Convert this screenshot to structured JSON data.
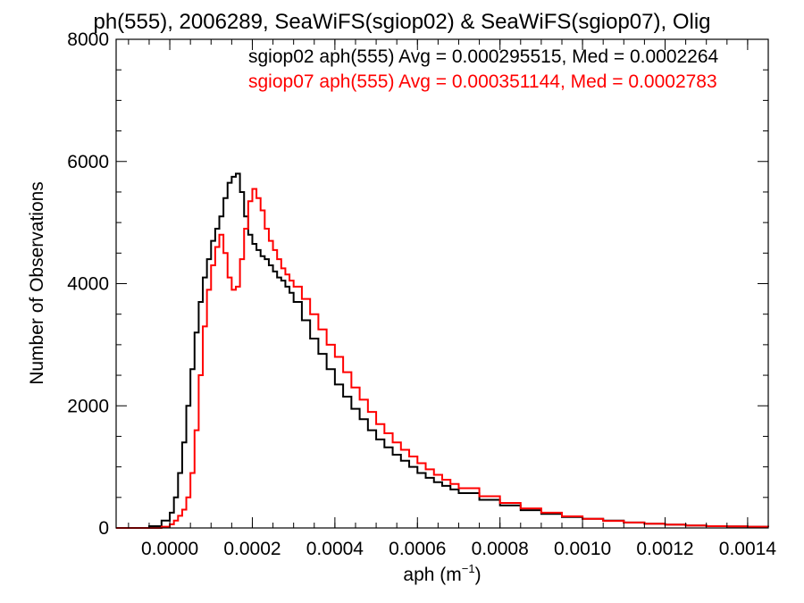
{
  "chart_data": {
    "type": "line",
    "title": "ph(555), 2006289, SeaWiFS(sgiop02) & SeaWiFS(sgiop07), Olig",
    "xlabel": "aph (m",
    "xlabel_sup": "−1",
    "xlabel_close": ")",
    "ylabel": "Number of Observations",
    "xlim": [
      -0.00013,
      0.00145
    ],
    "ylim": [
      0,
      8000
    ],
    "x_ticks": [
      0.0,
      0.0002,
      0.0004,
      0.0006,
      0.0008,
      0.001,
      0.0012,
      0.0014
    ],
    "x_tick_labels": [
      "0.0000",
      "0.0002",
      "0.0004",
      "0.0006",
      "0.0008",
      "0.0010",
      "0.0012",
      "0.0014"
    ],
    "y_ticks": [
      0,
      2000,
      4000,
      6000,
      8000
    ],
    "y_tick_labels": [
      "0",
      "2000",
      "4000",
      "6000",
      "8000"
    ],
    "grid": false,
    "step": true,
    "annotations": [
      {
        "text": "sgiop02 aph(555) Avg = 0.000295515, Med = 0.0002264",
        "color": "#000000"
      },
      {
        "text": "sgiop07 aph(555) Avg = 0.000351144, Med = 0.0002783",
        "color": "#ff0000"
      }
    ],
    "series": [
      {
        "color": "#000000",
        "x": [
          -0.00013,
          -0.0001,
          -5e-05,
          -2e-05,
          0.0,
          1e-05,
          2e-05,
          3e-05,
          4e-05,
          5e-05,
          6e-05,
          7e-05,
          8e-05,
          9e-05,
          0.0001,
          0.00011,
          0.00012,
          0.00013,
          0.00014,
          0.00015,
          0.00016,
          0.00017,
          0.00018,
          0.00019,
          0.0002,
          0.00021,
          0.00022,
          0.00023,
          0.00024,
          0.00025,
          0.00026,
          0.00027,
          0.00028,
          0.00029,
          0.0003,
          0.00032,
          0.00034,
          0.00036,
          0.00038,
          0.0004,
          0.00042,
          0.00044,
          0.00046,
          0.00048,
          0.0005,
          0.00052,
          0.00054,
          0.00056,
          0.00058,
          0.0006,
          0.00062,
          0.00064,
          0.00066,
          0.00068,
          0.0007,
          0.00075,
          0.0008,
          0.00085,
          0.0009,
          0.00095,
          0.001,
          0.00105,
          0.0011,
          0.00115,
          0.0012,
          0.00125,
          0.0013,
          0.00135,
          0.0014,
          0.00145
        ],
        "y": [
          0,
          0,
          30,
          120,
          250,
          500,
          900,
          1400,
          2000,
          2600,
          3200,
          3700,
          4100,
          4400,
          4700,
          4900,
          5100,
          5400,
          5650,
          5750,
          5800,
          5500,
          5100,
          4800,
          4650,
          4550,
          4450,
          4400,
          4300,
          4200,
          4100,
          4050,
          3950,
          3850,
          3700,
          3400,
          3100,
          2850,
          2600,
          2350,
          2150,
          1950,
          1780,
          1600,
          1450,
          1320,
          1200,
          1100,
          1000,
          900,
          820,
          750,
          690,
          630,
          570,
          460,
          370,
          290,
          230,
          180,
          150,
          120,
          90,
          70,
          55,
          40,
          30,
          25,
          20,
          15
        ]
      },
      {
        "color": "#ff0000",
        "x": [
          -0.00013,
          -0.0001,
          -5e-05,
          -2e-05,
          0.0,
          1e-05,
          2e-05,
          3e-05,
          4e-05,
          5e-05,
          6e-05,
          7e-05,
          8e-05,
          9e-05,
          0.0001,
          0.00011,
          0.00012,
          0.00013,
          0.00014,
          0.00015,
          0.00016,
          0.00017,
          0.00018,
          0.00019,
          0.0002,
          0.00021,
          0.00022,
          0.00023,
          0.00024,
          0.00025,
          0.00026,
          0.00027,
          0.00028,
          0.00029,
          0.0003,
          0.00032,
          0.00034,
          0.00036,
          0.00038,
          0.0004,
          0.00042,
          0.00044,
          0.00046,
          0.00048,
          0.0005,
          0.00052,
          0.00054,
          0.00056,
          0.00058,
          0.0006,
          0.00062,
          0.00064,
          0.00066,
          0.00068,
          0.0007,
          0.00075,
          0.0008,
          0.00085,
          0.0009,
          0.00095,
          0.001,
          0.00105,
          0.0011,
          0.00115,
          0.0012,
          0.00125,
          0.0013,
          0.00135,
          0.0014,
          0.00145
        ],
        "y": [
          0,
          0,
          0,
          20,
          60,
          120,
          200,
          300,
          500,
          900,
          1600,
          2500,
          3300,
          3900,
          4300,
          4600,
          4800,
          4500,
          4100,
          3900,
          3950,
          4400,
          4900,
          5350,
          5550,
          5400,
          5200,
          4900,
          4700,
          4550,
          4400,
          4250,
          4150,
          4050,
          3950,
          3750,
          3500,
          3250,
          3000,
          2800,
          2550,
          2300,
          2100,
          1900,
          1700,
          1550,
          1400,
          1280,
          1170,
          1060,
          960,
          870,
          790,
          720,
          650,
          520,
          410,
          320,
          250,
          190,
          150,
          115,
          90,
          70,
          55,
          40,
          30,
          25,
          20,
          15
        ]
      }
    ]
  }
}
